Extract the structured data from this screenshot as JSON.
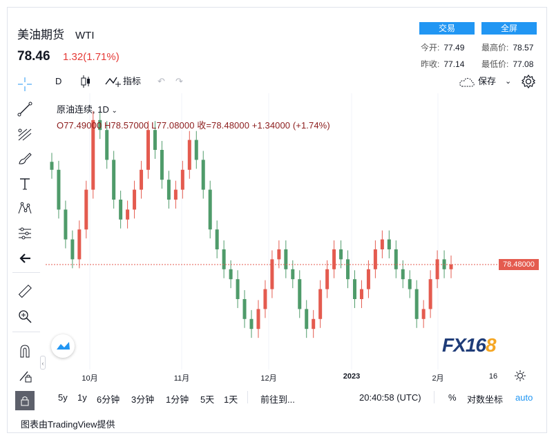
{
  "header": {
    "name": "美油期货",
    "symbol": "WTI",
    "price": "78.46",
    "change": "1.32(1.71%)",
    "trade_button": "交易",
    "fullscreen_button": "全屏",
    "open_label": "今开:",
    "open_value": "77.49",
    "high_label": "最高价:",
    "high_value": "78.57",
    "prev_label": "昨收:",
    "prev_value": "77.14",
    "low_label": "最低价:",
    "low_value": "77.08"
  },
  "toolbar": {
    "interval": "D",
    "indicators": "指标",
    "save": "保存"
  },
  "legend": {
    "series_title": "原油连续, 1D",
    "ohlc": "O77.49000  H78.57000  L77.08000  收=78.48000  +1.34000 (+1.74%)"
  },
  "price_tag": "78.48000",
  "x_axis": [
    "10月",
    "11月",
    "12月",
    "2023",
    "2月",
    "16"
  ],
  "bottom": {
    "ranges": [
      "5y",
      "1y",
      "6分钟",
      "3分钟",
      "1分钟",
      "5天",
      "1天"
    ],
    "goto": "前往到...",
    "time": "20:40:58 (UTC)",
    "percent": "%",
    "log": "对数坐标",
    "auto": "auto"
  },
  "footer": "图表由TradingView提供",
  "watermark": "FX168",
  "colors": {
    "up": "#e45b4f",
    "down": "#4f9b6a",
    "accent": "#2196f3"
  },
  "chart_data": {
    "type": "candlestick",
    "x": [
      "10月",
      "11月",
      "12月",
      "2023",
      "2月"
    ],
    "closes": [
      88,
      84,
      81,
      79,
      82,
      86,
      93,
      92,
      89,
      85,
      83,
      84,
      86,
      88,
      92,
      90,
      87,
      85,
      86,
      88,
      91,
      89,
      86,
      82,
      80,
      78,
      77,
      75,
      73,
      72,
      74,
      76,
      79,
      80,
      78,
      77,
      74,
      72,
      73,
      76,
      78,
      80,
      79,
      77,
      75,
      76,
      78,
      80,
      81,
      80,
      78,
      77,
      76,
      73,
      74,
      77,
      79,
      78,
      78.48
    ]
  }
}
